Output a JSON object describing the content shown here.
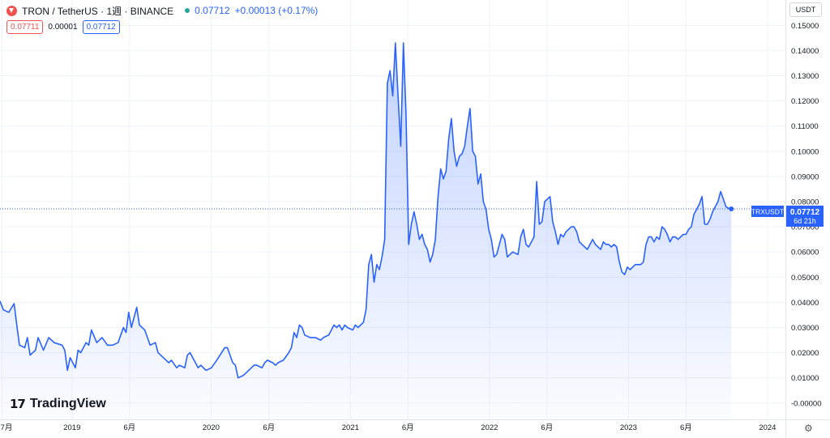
{
  "header": {
    "symbol": "TRON / TetherUS · 1週 · BINANCE",
    "last_price": "0.07712",
    "change": "+0.00013 (+0.17%)",
    "price_boxes": [
      "0.07711",
      "0.00001",
      "0.07712"
    ]
  },
  "currency_button": "USDT",
  "brand": "TradingView",
  "price_label": {
    "symbol": "TRXUSDT",
    "price": "0.07712",
    "countdown": "6d 21h"
  },
  "colors": {
    "line": "#2962ff",
    "up": "#26a69a",
    "down": "#ef5350",
    "label_bg": "#2962ff"
  },
  "chart_data": {
    "type": "area",
    "y_axis": {
      "labels": [
        "0.15000",
        "0.14000",
        "0.13000",
        "0.12000",
        "0.11000",
        "0.10000",
        "0.09000",
        "0.08000",
        "0.07000",
        "0.06000",
        "0.05000",
        "0.04000",
        "0.03000",
        "0.02000",
        "0.01000",
        "-0.00000"
      ],
      "values": [
        0.15,
        0.14,
        0.13,
        0.12,
        0.11,
        0.1,
        0.09,
        0.08,
        0.07,
        0.06,
        0.05,
        0.04,
        0.03,
        0.02,
        0.01,
        0.0
      ],
      "ylim": [
        -0.0065,
        0.1543
      ]
    },
    "x_axis": {
      "labels": [
        "7月",
        "2019",
        "6月",
        "2020",
        "6月",
        "2021",
        "6月",
        "2022",
        "6月",
        "2023",
        "6月",
        "2024"
      ],
      "dates": [
        "2018-07-01",
        "2019-01-01",
        "2019-06-01",
        "2020-01-01",
        "2020-06-01",
        "2021-01-01",
        "2021-06-01",
        "2022-01-01",
        "2022-06-01",
        "2023-01-01",
        "2023-06-01",
        "2024-01-01"
      ],
      "xlim": [
        "2018-06-26",
        "2024-02-17"
      ]
    },
    "grid": true,
    "last_value": 0.07712,
    "series": [
      {
        "points": [
          [
            "2018-06-26",
            0.0405
          ],
          [
            "2018-07-05",
            0.037
          ],
          [
            "2018-07-19",
            0.036
          ],
          [
            "2018-08-02",
            0.0395
          ],
          [
            "2018-08-09",
            0.031
          ],
          [
            "2018-08-16",
            0.023
          ],
          [
            "2018-08-30",
            0.022
          ],
          [
            "2018-09-06",
            0.026
          ],
          [
            "2018-09-13",
            0.019
          ],
          [
            "2018-09-27",
            0.021
          ],
          [
            "2018-10-04",
            0.026
          ],
          [
            "2018-10-18",
            0.021
          ],
          [
            "2018-11-01",
            0.026
          ],
          [
            "2018-11-15",
            0.024
          ],
          [
            "2018-12-06",
            0.023
          ],
          [
            "2018-12-13",
            0.021
          ],
          [
            "2018-12-20",
            0.013
          ],
          [
            "2018-12-27",
            0.018
          ],
          [
            "2019-01-10",
            0.014
          ],
          [
            "2019-01-17",
            0.021
          ],
          [
            "2019-01-24",
            0.02
          ],
          [
            "2019-02-07",
            0.024
          ],
          [
            "2019-02-14",
            0.023
          ],
          [
            "2019-02-21",
            0.029
          ],
          [
            "2019-03-07",
            0.024
          ],
          [
            "2019-03-21",
            0.026
          ],
          [
            "2019-04-04",
            0.023
          ],
          [
            "2019-04-18",
            0.023
          ],
          [
            "2019-05-02",
            0.024
          ],
          [
            "2019-05-09",
            0.027
          ],
          [
            "2019-05-16",
            0.03
          ],
          [
            "2019-05-23",
            0.028
          ],
          [
            "2019-05-30",
            0.036
          ],
          [
            "2019-06-06",
            0.03
          ],
          [
            "2019-06-20",
            0.038
          ],
          [
            "2019-06-27",
            0.031
          ],
          [
            "2019-07-11",
            0.029
          ],
          [
            "2019-07-18",
            0.026
          ],
          [
            "2019-07-25",
            0.023
          ],
          [
            "2019-08-08",
            0.024
          ],
          [
            "2019-08-15",
            0.02
          ],
          [
            "2019-08-22",
            0.019
          ],
          [
            "2019-09-05",
            0.017
          ],
          [
            "2019-09-12",
            0.016
          ],
          [
            "2019-09-19",
            0.017
          ],
          [
            "2019-10-03",
            0.014
          ],
          [
            "2019-10-10",
            0.015
          ],
          [
            "2019-10-24",
            0.014
          ],
          [
            "2019-10-31",
            0.019
          ],
          [
            "2019-11-07",
            0.02
          ],
          [
            "2019-11-21",
            0.016
          ],
          [
            "2019-11-28",
            0.014
          ],
          [
            "2019-12-05",
            0.015
          ],
          [
            "2019-12-19",
            0.013
          ],
          [
            "2020-01-02",
            0.014
          ],
          [
            "2020-01-16",
            0.017
          ],
          [
            "2020-02-06",
            0.022
          ],
          [
            "2020-02-13",
            0.022
          ],
          [
            "2020-02-27",
            0.016
          ],
          [
            "2020-03-05",
            0.015
          ],
          [
            "2020-03-12",
            0.01
          ],
          [
            "2020-03-26",
            0.011
          ],
          [
            "2020-04-09",
            0.013
          ],
          [
            "2020-04-23",
            0.015
          ],
          [
            "2020-04-30",
            0.015
          ],
          [
            "2020-05-14",
            0.014
          ],
          [
            "2020-05-21",
            0.016
          ],
          [
            "2020-05-28",
            0.017
          ],
          [
            "2020-06-11",
            0.016
          ],
          [
            "2020-06-18",
            0.015
          ],
          [
            "2020-06-25",
            0.016
          ],
          [
            "2020-07-09",
            0.017
          ],
          [
            "2020-07-23",
            0.02
          ],
          [
            "2020-07-30",
            0.022
          ],
          [
            "2020-08-06",
            0.028
          ],
          [
            "2020-08-13",
            0.026
          ],
          [
            "2020-08-20",
            0.031
          ],
          [
            "2020-08-27",
            0.03
          ],
          [
            "2020-09-03",
            0.027
          ],
          [
            "2020-09-17",
            0.026
          ],
          [
            "2020-10-01",
            0.026
          ],
          [
            "2020-10-15",
            0.025
          ],
          [
            "2020-10-22",
            0.026
          ],
          [
            "2020-11-05",
            0.027
          ],
          [
            "2020-11-19",
            0.031
          ],
          [
            "2020-11-26",
            0.03
          ],
          [
            "2020-12-03",
            0.031
          ],
          [
            "2020-12-10",
            0.029
          ],
          [
            "2020-12-17",
            0.031
          ],
          [
            "2020-12-24",
            0.03
          ],
          [
            "2021-01-07",
            0.029
          ],
          [
            "2021-01-14",
            0.031
          ],
          [
            "2021-01-21",
            0.03
          ],
          [
            "2021-02-04",
            0.032
          ],
          [
            "2021-02-11",
            0.037
          ],
          [
            "2021-02-18",
            0.055
          ],
          [
            "2021-02-25",
            0.059
          ],
          [
            "2021-03-04",
            0.048
          ],
          [
            "2021-03-11",
            0.055
          ],
          [
            "2021-03-18",
            0.053
          ],
          [
            "2021-03-25",
            0.058
          ],
          [
            "2021-04-01",
            0.065
          ],
          [
            "2021-04-08",
            0.127
          ],
          [
            "2021-04-15",
            0.132
          ],
          [
            "2021-04-22",
            0.122
          ],
          [
            "2021-04-29",
            0.143
          ],
          [
            "2021-05-06",
            0.122
          ],
          [
            "2021-05-13",
            0.102
          ],
          [
            "2021-05-20",
            0.143
          ],
          [
            "2021-05-27",
            0.115
          ],
          [
            "2021-06-03",
            0.063
          ],
          [
            "2021-06-10",
            0.071
          ],
          [
            "2021-06-17",
            0.076
          ],
          [
            "2021-06-24",
            0.071
          ],
          [
            "2021-07-01",
            0.065
          ],
          [
            "2021-07-08",
            0.067
          ],
          [
            "2021-07-15",
            0.063
          ],
          [
            "2021-07-22",
            0.061
          ],
          [
            "2021-07-29",
            0.056
          ],
          [
            "2021-08-05",
            0.059
          ],
          [
            "2021-08-12",
            0.065
          ],
          [
            "2021-08-19",
            0.082
          ],
          [
            "2021-08-26",
            0.093
          ],
          [
            "2021-09-02",
            0.089
          ],
          [
            "2021-09-09",
            0.092
          ],
          [
            "2021-09-16",
            0.105
          ],
          [
            "2021-09-23",
            0.113
          ],
          [
            "2021-09-30",
            0.1
          ],
          [
            "2021-10-07",
            0.094
          ],
          [
            "2021-10-14",
            0.098
          ],
          [
            "2021-10-21",
            0.099
          ],
          [
            "2021-10-28",
            0.102
          ],
          [
            "2021-11-04",
            0.11
          ],
          [
            "2021-11-11",
            0.117
          ],
          [
            "2021-11-18",
            0.1
          ],
          [
            "2021-11-25",
            0.098
          ],
          [
            "2021-12-02",
            0.087
          ],
          [
            "2021-12-09",
            0.091
          ],
          [
            "2021-12-16",
            0.08
          ],
          [
            "2021-12-23",
            0.077
          ],
          [
            "2021-12-30",
            0.069
          ],
          [
            "2022-01-06",
            0.065
          ],
          [
            "2022-01-13",
            0.058
          ],
          [
            "2022-01-20",
            0.059
          ],
          [
            "2022-01-27",
            0.063
          ],
          [
            "2022-02-03",
            0.067
          ],
          [
            "2022-02-10",
            0.065
          ],
          [
            "2022-02-17",
            0.058
          ],
          [
            "2022-02-24",
            0.059
          ],
          [
            "2022-03-03",
            0.06
          ],
          [
            "2022-03-17",
            0.059
          ],
          [
            "2022-03-24",
            0.066
          ],
          [
            "2022-03-31",
            0.069
          ],
          [
            "2022-04-07",
            0.063
          ],
          [
            "2022-04-14",
            0.062
          ],
          [
            "2022-04-21",
            0.064
          ],
          [
            "2022-04-28",
            0.066
          ],
          [
            "2022-05-05",
            0.088
          ],
          [
            "2022-05-12",
            0.071
          ],
          [
            "2022-05-19",
            0.072
          ],
          [
            "2022-05-26",
            0.08
          ],
          [
            "2022-06-02",
            0.081
          ],
          [
            "2022-06-09",
            0.082
          ],
          [
            "2022-06-16",
            0.072
          ],
          [
            "2022-06-23",
            0.068
          ],
          [
            "2022-06-30",
            0.063
          ],
          [
            "2022-07-07",
            0.067
          ],
          [
            "2022-07-14",
            0.066
          ],
          [
            "2022-07-21",
            0.068
          ],
          [
            "2022-07-28",
            0.069
          ],
          [
            "2022-08-04",
            0.07
          ],
          [
            "2022-08-11",
            0.07
          ],
          [
            "2022-08-18",
            0.068
          ],
          [
            "2022-08-25",
            0.064
          ],
          [
            "2022-09-01",
            0.063
          ],
          [
            "2022-09-08",
            0.062
          ],
          [
            "2022-09-15",
            0.061
          ],
          [
            "2022-09-22",
            0.063
          ],
          [
            "2022-09-29",
            0.065
          ],
          [
            "2022-10-06",
            0.063
          ],
          [
            "2022-10-13",
            0.062
          ],
          [
            "2022-10-20",
            0.061
          ],
          [
            "2022-10-27",
            0.064
          ],
          [
            "2022-11-03",
            0.063
          ],
          [
            "2022-11-10",
            0.063
          ],
          [
            "2022-11-17",
            0.062
          ],
          [
            "2022-11-24",
            0.063
          ],
          [
            "2022-12-01",
            0.062
          ],
          [
            "2022-12-08",
            0.056
          ],
          [
            "2022-12-15",
            0.052
          ],
          [
            "2022-12-22",
            0.051
          ],
          [
            "2022-12-29",
            0.054
          ],
          [
            "2023-01-05",
            0.053
          ],
          [
            "2023-01-12",
            0.054
          ],
          [
            "2023-01-19",
            0.055
          ],
          [
            "2023-01-26",
            0.055
          ],
          [
            "2023-02-02",
            0.055
          ],
          [
            "2023-02-09",
            0.056
          ],
          [
            "2023-02-16",
            0.063
          ],
          [
            "2023-02-23",
            0.066
          ],
          [
            "2023-03-02",
            0.066
          ],
          [
            "2023-03-09",
            0.064
          ],
          [
            "2023-03-16",
            0.066
          ],
          [
            "2023-03-23",
            0.065
          ],
          [
            "2023-03-30",
            0.07
          ],
          [
            "2023-04-06",
            0.069
          ],
          [
            "2023-04-13",
            0.067
          ],
          [
            "2023-04-20",
            0.064
          ],
          [
            "2023-04-27",
            0.066
          ],
          [
            "2023-05-04",
            0.066
          ],
          [
            "2023-05-11",
            0.065
          ],
          [
            "2023-05-18",
            0.066
          ],
          [
            "2023-05-25",
            0.067
          ],
          [
            "2023-06-01",
            0.067
          ],
          [
            "2023-06-08",
            0.069
          ],
          [
            "2023-06-15",
            0.07
          ],
          [
            "2023-06-22",
            0.075
          ],
          [
            "2023-06-29",
            0.077
          ],
          [
            "2023-07-06",
            0.079
          ],
          [
            "2023-07-13",
            0.082
          ],
          [
            "2023-07-20",
            0.071
          ],
          [
            "2023-07-27",
            0.071
          ],
          [
            "2023-08-03",
            0.073
          ],
          [
            "2023-08-10",
            0.076
          ],
          [
            "2023-08-17",
            0.078
          ],
          [
            "2023-08-24",
            0.08
          ],
          [
            "2023-08-31",
            0.084
          ],
          [
            "2023-09-07",
            0.081
          ],
          [
            "2023-09-14",
            0.078
          ],
          [
            "2023-09-21",
            0.0773
          ],
          [
            "2023-09-28",
            0.0771
          ]
        ]
      }
    ]
  }
}
